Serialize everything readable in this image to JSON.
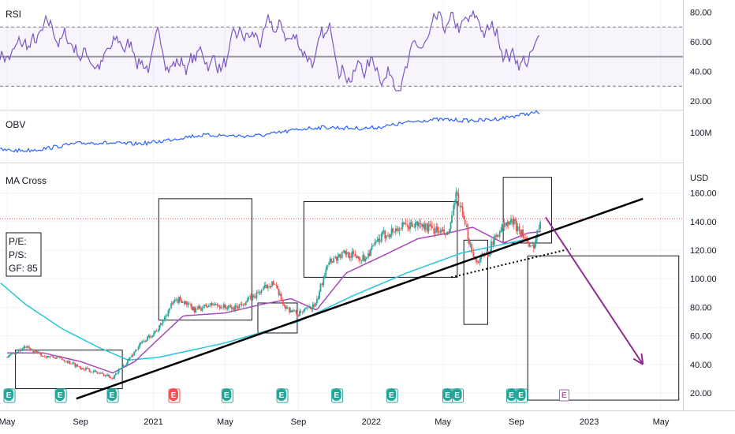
{
  "panels": {
    "rsi_label": "RSI",
    "obv_label": "OBV",
    "price_label": "MA Cross",
    "currency": "USD"
  },
  "info_box": {
    "pe": "P/E:",
    "ps": "P/S:",
    "gf": "GF: 85"
  },
  "colors": {
    "rsi_line": "#7e57c2",
    "obv_line": "#2962ff",
    "ma_fast": "#ab47bc",
    "ma_slow": "#26c6da",
    "candle_up": "#26a69a",
    "candle_down": "#ef5350",
    "trend_line": "#000000",
    "forecast_arrow": "#8e2c8e",
    "price_line": "#ef5350",
    "earnings_green": "#26a69a",
    "earnings_red": "#ef5350",
    "earnings_purple": "#b455b6"
  },
  "earnings_marker_letter": "E",
  "chart_data": [
    {
      "type": "line",
      "panel": "rsi",
      "title": "RSI",
      "y_ticks": [
        "80.00",
        "60.00",
        "40.00",
        "20.00"
      ],
      "ylim": [
        15,
        85
      ],
      "levels": [
        70,
        50,
        30
      ],
      "grid": true
    },
    {
      "type": "line",
      "panel": "obv",
      "title": "OBV",
      "y_ticks": [
        "100M"
      ],
      "grid": true
    },
    {
      "type": "candlestick",
      "panel": "price",
      "title": "MA Cross",
      "unit": "USD",
      "y_ticks": [
        "160.00",
        "140.00",
        "120.00",
        "100.00",
        "80.00",
        "60.00",
        "40.00",
        "20.00"
      ],
      "ylim": [
        13,
        173
      ],
      "x_ticks": [
        "May",
        "Sep",
        "2021",
        "May",
        "Sep",
        "2022",
        "May",
        "Sep",
        "2023",
        "May"
      ],
      "current_price_level": 142,
      "price_anchors": [
        {
          "d": "2020-05-01",
          "v": 45
        },
        {
          "d": "2020-06-01",
          "v": 52
        },
        {
          "d": "2020-07-01",
          "v": 46
        },
        {
          "d": "2020-08-01",
          "v": 44
        },
        {
          "d": "2020-09-01",
          "v": 38
        },
        {
          "d": "2020-10-01",
          "v": 34
        },
        {
          "d": "2020-10-25",
          "v": 31
        },
        {
          "d": "2020-11-15",
          "v": 40
        },
        {
          "d": "2020-12-10",
          "v": 54
        },
        {
          "d": "2021-01-10",
          "v": 65
        },
        {
          "d": "2021-02-01",
          "v": 82
        },
        {
          "d": "2021-02-15",
          "v": 86
        },
        {
          "d": "2021-03-10",
          "v": 78
        },
        {
          "d": "2021-04-10",
          "v": 82
        },
        {
          "d": "2021-05-15",
          "v": 79
        },
        {
          "d": "2021-06-20",
          "v": 88
        },
        {
          "d": "2021-07-20",
          "v": 98
        },
        {
          "d": "2021-08-10",
          "v": 80
        },
        {
          "d": "2021-09-01",
          "v": 75
        },
        {
          "d": "2021-10-01",
          "v": 82
        },
        {
          "d": "2021-10-20",
          "v": 112
        },
        {
          "d": "2021-11-20",
          "v": 118
        },
        {
          "d": "2021-12-20",
          "v": 114
        },
        {
          "d": "2022-01-20",
          "v": 130
        },
        {
          "d": "2022-02-20",
          "v": 136
        },
        {
          "d": "2022-03-20",
          "v": 138
        },
        {
          "d": "2022-04-20",
          "v": 134
        },
        {
          "d": "2022-05-10",
          "v": 130
        },
        {
          "d": "2022-05-25",
          "v": 160
        },
        {
          "d": "2022-06-05",
          "v": 140
        },
        {
          "d": "2022-06-25",
          "v": 112
        },
        {
          "d": "2022-07-15",
          "v": 118
        },
        {
          "d": "2022-08-05",
          "v": 135
        },
        {
          "d": "2022-08-25",
          "v": 140
        },
        {
          "d": "2022-09-10",
          "v": 133
        },
        {
          "d": "2022-09-25",
          "v": 120
        },
        {
          "d": "2022-10-05",
          "v": 128
        },
        {
          "d": "2022-10-12",
          "v": 144
        }
      ],
      "ma_fast_anchors": [
        {
          "d": "2020-05-01",
          "v": 48
        },
        {
          "d": "2020-07-01",
          "v": 48
        },
        {
          "d": "2020-09-01",
          "v": 42
        },
        {
          "d": "2020-10-25",
          "v": 34
        },
        {
          "d": "2020-12-01",
          "v": 42
        },
        {
          "d": "2021-01-10",
          "v": 58
        },
        {
          "d": "2021-02-20",
          "v": 74
        },
        {
          "d": "2021-05-01",
          "v": 76
        },
        {
          "d": "2021-07-01",
          "v": 82
        },
        {
          "d": "2021-08-20",
          "v": 86
        },
        {
          "d": "2021-10-01",
          "v": 78
        },
        {
          "d": "2021-11-20",
          "v": 104
        },
        {
          "d": "2022-01-20",
          "v": 116
        },
        {
          "d": "2022-03-20",
          "v": 128
        },
        {
          "d": "2022-05-10",
          "v": 132
        },
        {
          "d": "2022-06-20",
          "v": 136
        },
        {
          "d": "2022-08-10",
          "v": 125
        },
        {
          "d": "2022-09-20",
          "v": 132
        },
        {
          "d": "2022-10-12",
          "v": 133
        }
      ],
      "ma_slow_anchors": [
        {
          "d": "2020-04-20",
          "v": 97
        },
        {
          "d": "2020-06-01",
          "v": 82
        },
        {
          "d": "2020-08-01",
          "v": 65
        },
        {
          "d": "2020-10-01",
          "v": 52
        },
        {
          "d": "2020-11-20",
          "v": 43
        },
        {
          "d": "2021-01-10",
          "v": 45
        },
        {
          "d": "2021-05-01",
          "v": 55
        },
        {
          "d": "2021-09-01",
          "v": 70
        },
        {
          "d": "2021-12-01",
          "v": 88
        },
        {
          "d": "2022-03-01",
          "v": 104
        },
        {
          "d": "2022-06-01",
          "v": 118
        },
        {
          "d": "2022-08-20",
          "v": 125
        },
        {
          "d": "2022-10-12",
          "v": 130
        }
      ],
      "trend_lines": [
        {
          "style": "solid",
          "from": {
            "d": "2020-08-25",
            "v": 16
          },
          "to": {
            "d": "2023-04-01",
            "v": 156
          }
        },
        {
          "style": "dotted",
          "from": {
            "d": "2022-05-15",
            "v": 101
          },
          "to": {
            "d": "2022-12-01",
            "v": 121
          }
        }
      ],
      "forecast_arrow": {
        "from": {
          "d": "2022-10-20",
          "v": 143
        },
        "to": {
          "d": "2023-04-01",
          "v": 40
        }
      },
      "annotation_boxes": [
        {
          "d0": "2020-05-15",
          "d1": "2020-11-10",
          "v0": 23,
          "v1": 50
        },
        {
          "d0": "2021-01-10",
          "d1": "2021-06-15",
          "v0": 71,
          "v1": 156
        },
        {
          "d0": "2021-06-25",
          "d1": "2021-08-30",
          "v0": 62,
          "v1": 83
        },
        {
          "d0": "2021-09-10",
          "d1": "2022-05-25",
          "v0": 101,
          "v1": 154
        },
        {
          "d0": "2022-06-05",
          "d1": "2022-07-15",
          "v0": 68,
          "v1": 127
        },
        {
          "d0": "2022-08-10",
          "d1": "2022-10-30",
          "v0": 125,
          "v1": 171
        },
        {
          "d0": "2022-09-20",
          "d1": "2023-05-31",
          "v0": 15,
          "v1": 116
        }
      ],
      "earnings_markers": [
        {
          "d": "2020-05-05",
          "type": "green"
        },
        {
          "d": "2020-07-30",
          "type": "green"
        },
        {
          "d": "2020-10-25",
          "type": "green"
        },
        {
          "d": "2021-02-05",
          "type": "red"
        },
        {
          "d": "2021-05-05",
          "type": "green"
        },
        {
          "d": "2021-08-05",
          "type": "green"
        },
        {
          "d": "2021-11-05",
          "type": "green"
        },
        {
          "d": "2022-02-05",
          "type": "green"
        },
        {
          "d": "2022-05-10",
          "type": "green"
        },
        {
          "d": "2022-05-26",
          "type": "green"
        },
        {
          "d": "2022-08-25",
          "type": "green"
        },
        {
          "d": "2022-09-10",
          "type": "green"
        },
        {
          "d": "2022-11-20",
          "type": "purple"
        }
      ]
    }
  ]
}
